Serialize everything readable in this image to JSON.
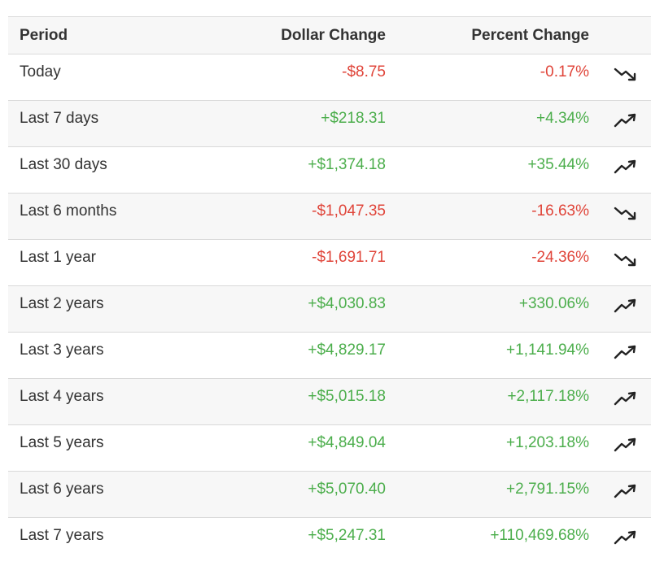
{
  "colors": {
    "positive": "#4cae4c",
    "negative": "#e0453a",
    "stripe": "#f7f7f7",
    "border": "#d9d9d9",
    "text": "#333333"
  },
  "table": {
    "headers": {
      "period": "Period",
      "dollar_change": "Dollar Change",
      "percent_change": "Percent Change"
    },
    "rows": [
      {
        "period": "Today",
        "dollar_change": "-$8.75",
        "percent_change": "-0.17%",
        "direction": "down",
        "icon": "trending-down-icon"
      },
      {
        "period": "Last 7 days",
        "dollar_change": "+$218.31",
        "percent_change": "+4.34%",
        "direction": "up",
        "icon": "trending-up-icon"
      },
      {
        "period": "Last 30 days",
        "dollar_change": "+$1,374.18",
        "percent_change": "+35.44%",
        "direction": "up",
        "icon": "trending-up-icon"
      },
      {
        "period": "Last 6 months",
        "dollar_change": "-$1,047.35",
        "percent_change": "-16.63%",
        "direction": "down",
        "icon": "trending-down-icon"
      },
      {
        "period": "Last 1 year",
        "dollar_change": "-$1,691.71",
        "percent_change": "-24.36%",
        "direction": "down",
        "icon": "trending-down-icon"
      },
      {
        "period": "Last 2 years",
        "dollar_change": "+$4,030.83",
        "percent_change": "+330.06%",
        "direction": "up",
        "icon": "trending-up-icon"
      },
      {
        "period": "Last 3 years",
        "dollar_change": "+$4,829.17",
        "percent_change": "+1,141.94%",
        "direction": "up",
        "icon": "trending-up-icon"
      },
      {
        "period": "Last 4 years",
        "dollar_change": "+$5,015.18",
        "percent_change": "+2,117.18%",
        "direction": "up",
        "icon": "trending-up-icon"
      },
      {
        "period": "Last 5 years",
        "dollar_change": "+$4,849.04",
        "percent_change": "+1,203.18%",
        "direction": "up",
        "icon": "trending-up-icon"
      },
      {
        "period": "Last 6 years",
        "dollar_change": "+$5,070.40",
        "percent_change": "+2,791.15%",
        "direction": "up",
        "icon": "trending-up-icon"
      },
      {
        "period": "Last 7 years",
        "dollar_change": "+$5,247.31",
        "percent_change": "+110,469.68%",
        "direction": "up",
        "icon": "trending-up-icon"
      }
    ]
  }
}
